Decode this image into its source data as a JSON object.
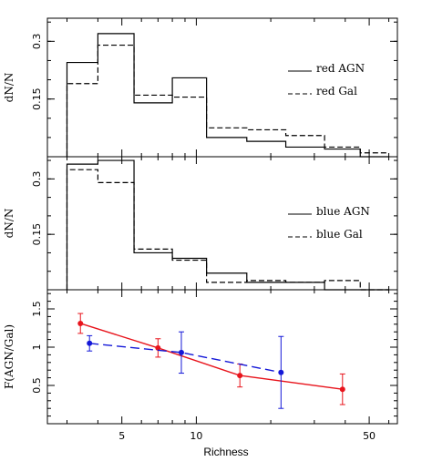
{
  "chart_data": [
    {
      "type": "step",
      "panel": "top",
      "ylabel": "dN/N",
      "yticks": [
        0.15,
        0.3
      ],
      "ytick_labels": [
        "0.15",
        "0.3"
      ],
      "ylim": [
        0,
        0.36
      ],
      "xscale": "log",
      "bin_edges": [
        3,
        4,
        5.6,
        8,
        11,
        16,
        23,
        33,
        46,
        60
      ],
      "series": [
        {
          "name": "red AGN",
          "style": "solid",
          "values": [
            0.245,
            0.32,
            0.14,
            0.205,
            0.05,
            0.04,
            0.025,
            0.02,
            0.0
          ]
        },
        {
          "name": "red Gal",
          "style": "dashed",
          "values": [
            0.19,
            0.29,
            0.16,
            0.155,
            0.075,
            0.07,
            0.055,
            0.025,
            0.01
          ]
        }
      ]
    },
    {
      "type": "step",
      "panel": "middle",
      "ylabel": "dN/N",
      "yticks": [
        0.15,
        0.3
      ],
      "ytick_labels": [
        "0.15",
        "0.3"
      ],
      "ylim": [
        0,
        0.36
      ],
      "xscale": "log",
      "bin_edges": [
        3,
        4,
        5.6,
        8,
        11,
        16,
        23,
        33,
        46,
        60
      ],
      "series": [
        {
          "name": "blue AGN",
          "style": "solid",
          "values": [
            0.34,
            0.35,
            0.1,
            0.085,
            0.045,
            0.02,
            0.02,
            0.0,
            0.0
          ]
        },
        {
          "name": "blue Gal",
          "style": "dashed",
          "values": [
            0.325,
            0.29,
            0.11,
            0.08,
            0.02,
            0.025,
            0.02,
            0.025,
            0.0
          ]
        }
      ]
    },
    {
      "type": "line",
      "panel": "bottom",
      "ylabel": "F(AGN/Gal)",
      "xlabel": "Richness",
      "xscale": "log",
      "xlim": [
        2.5,
        65
      ],
      "ylim": [
        0,
        1.75
      ],
      "yticks": [
        0.5,
        1,
        1.5
      ],
      "ytick_labels": [
        "0.5",
        "1",
        "1.5"
      ],
      "xticks": [
        5,
        10,
        50
      ],
      "xtick_labels": [
        "5",
        "10",
        "50"
      ],
      "series": [
        {
          "color": "#e8141c",
          "style": "solid",
          "x": [
            3.4,
            7.0,
            15.0,
            39.0
          ],
          "y": [
            1.31,
            0.99,
            0.63,
            0.45
          ],
          "err": [
            0.13,
            0.12,
            0.15,
            0.2
          ]
        },
        {
          "color": "#1418d8",
          "style": "dashed",
          "x": [
            3.7,
            8.7,
            22.0
          ],
          "y": [
            1.05,
            0.93,
            0.67
          ],
          "err": [
            0.1,
            0.27,
            0.47
          ]
        }
      ]
    }
  ]
}
